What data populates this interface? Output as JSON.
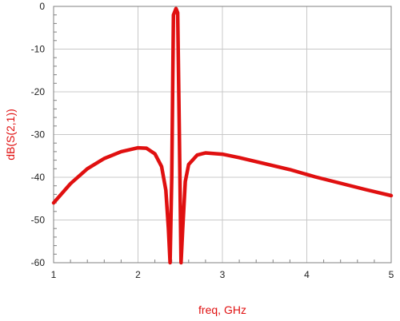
{
  "chart_data": {
    "type": "line",
    "xlabel": "freq, GHz",
    "ylabel": "dB(S(2,1))",
    "xlim": [
      1,
      5
    ],
    "ylim": [
      -60,
      0
    ],
    "x_ticks": [
      "1",
      "2",
      "3",
      "4",
      "5"
    ],
    "y_ticks": [
      "0",
      "-10",
      "-20",
      "-30",
      "-40",
      "-50",
      "-60"
    ],
    "grid": true,
    "line_color": "#e01010",
    "label_color": "#e01010",
    "series": [
      {
        "x": [
          1.0,
          1.2,
          1.4,
          1.6,
          1.8,
          2.0,
          2.1,
          2.2,
          2.28,
          2.33,
          2.36,
          2.38,
          2.4,
          2.42,
          2.45,
          2.47,
          2.49,
          2.51,
          2.53,
          2.56,
          2.6,
          2.7,
          2.8,
          3.0,
          3.2,
          3.5,
          3.8,
          4.1,
          4.4,
          4.7,
          5.0
        ],
        "y": [
          -46,
          -41.5,
          -38,
          -35.6,
          -34,
          -33.1,
          -33.2,
          -34.5,
          -37.5,
          -43,
          -52,
          -60,
          -40,
          -2,
          -0.5,
          -1.5,
          -30,
          -60,
          -52,
          -41,
          -37,
          -34.8,
          -34.3,
          -34.6,
          -35.4,
          -36.8,
          -38.2,
          -39.9,
          -41.4,
          -42.9,
          -44.3
        ]
      }
    ]
  }
}
